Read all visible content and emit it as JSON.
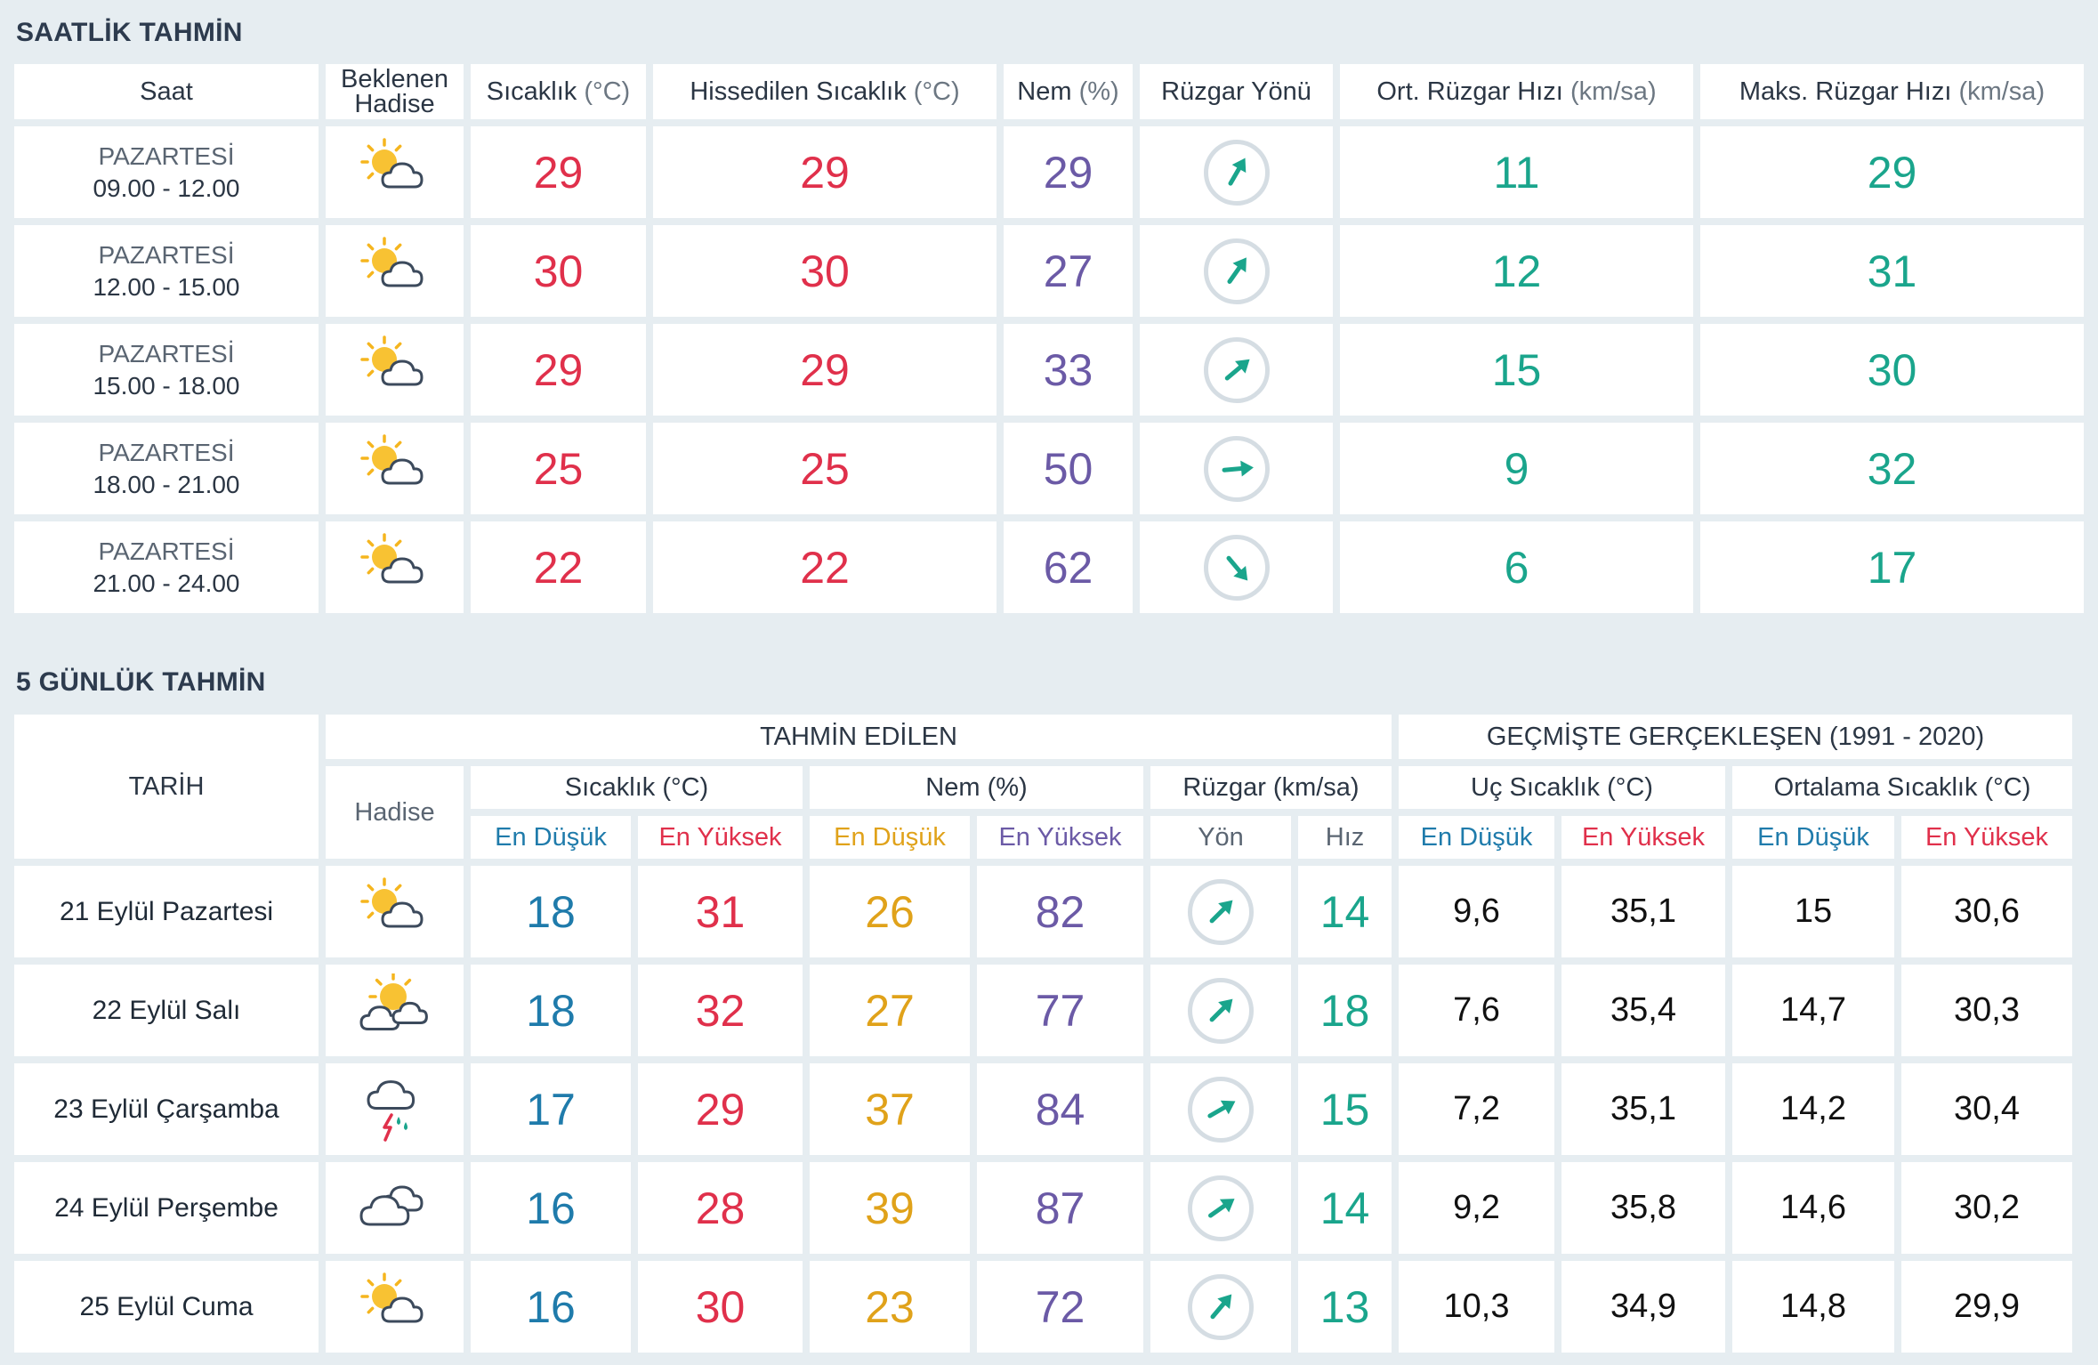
{
  "hourly": {
    "title": "SAATLİK TAHMİN",
    "headers": {
      "time": "Saat",
      "event": "Beklenen Hadise",
      "temp": "Sıcaklık",
      "temp_unit": "(°C)",
      "feels": "Hissedilen Sıcaklık",
      "feels_unit": "(°C)",
      "humidity": "Nem",
      "humidity_unit": "(%)",
      "wind_dir": "Rüzgar Yönü",
      "wind_avg": "Ort. Rüzgar Hızı",
      "wind_avg_unit": "(km/sa)",
      "wind_max": "Maks. Rüzgar Hızı",
      "wind_max_unit": "(km/sa)"
    },
    "rows": [
      {
        "day": "PAZARTESİ",
        "range": "09.00 - 12.00",
        "icon": "partly-cloudy-icon",
        "temp": "29",
        "feels": "29",
        "humidity": "29",
        "wind_dir_deg": 30,
        "wind_avg": "11",
        "wind_max": "29"
      },
      {
        "day": "PAZARTESİ",
        "range": "12.00 - 15.00",
        "icon": "partly-cloudy-icon",
        "temp": "30",
        "feels": "30",
        "humidity": "27",
        "wind_dir_deg": 35,
        "wind_avg": "12",
        "wind_max": "31"
      },
      {
        "day": "PAZARTESİ",
        "range": "15.00 - 18.00",
        "icon": "partly-cloudy-icon",
        "temp": "29",
        "feels": "29",
        "humidity": "33",
        "wind_dir_deg": 50,
        "wind_avg": "15",
        "wind_max": "30"
      },
      {
        "day": "PAZARTESİ",
        "range": "18.00 - 21.00",
        "icon": "partly-cloudy-icon",
        "temp": "25",
        "feels": "25",
        "humidity": "50",
        "wind_dir_deg": 85,
        "wind_avg": "9",
        "wind_max": "32"
      },
      {
        "day": "PAZARTESİ",
        "range": "21.00 - 24.00",
        "icon": "partly-cloudy-icon",
        "temp": "22",
        "feels": "22",
        "humidity": "62",
        "wind_dir_deg": 140,
        "wind_avg": "6",
        "wind_max": "17"
      }
    ]
  },
  "daily": {
    "title": "5 GÜNLÜK TAHMİN",
    "headers": {
      "date": "TARİH",
      "forecast_group": "TAHMİN EDİLEN",
      "history_group": "GEÇMİŞTE GERÇEKLEŞEN (1991 - 2020)",
      "event": "Hadise",
      "temp": "Sıcaklık (°C)",
      "humidity": "Nem (%)",
      "wind": "Rüzgar (km/sa)",
      "extreme_temp": "Uç Sıcaklık (°C)",
      "avg_temp": "Ortalama Sıcaklık (°C)",
      "min": "En Düşük",
      "max": "En Yüksek",
      "dir": "Yön",
      "speed": "Hız"
    },
    "rows": [
      {
        "date": "21 Eylül Pazartesi",
        "icon": "partly-cloudy-icon",
        "temp_min": "18",
        "temp_max": "31",
        "hum_min": "26",
        "hum_max": "82",
        "wind_dir_deg": 45,
        "wind_speed": "14",
        "ext_min": "9,6",
        "ext_max": "35,1",
        "avg_min": "15",
        "avg_max": "30,6"
      },
      {
        "date": "22 Eylül Salı",
        "icon": "sun-clouds-icon",
        "temp_min": "18",
        "temp_max": "32",
        "hum_min": "27",
        "hum_max": "77",
        "wind_dir_deg": 45,
        "wind_speed": "18",
        "ext_min": "7,6",
        "ext_max": "35,4",
        "avg_min": "14,7",
        "avg_max": "30,3"
      },
      {
        "date": "23 Eylül Çarşamba",
        "icon": "thunderstorm-icon",
        "temp_min": "17",
        "temp_max": "29",
        "hum_min": "37",
        "hum_max": "84",
        "wind_dir_deg": 60,
        "wind_speed": "15",
        "ext_min": "7,2",
        "ext_max": "35,1",
        "avg_min": "14,2",
        "avg_max": "30,4"
      },
      {
        "date": "24 Eylül Perşembe",
        "icon": "cloudy-icon",
        "temp_min": "16",
        "temp_max": "28",
        "hum_min": "39",
        "hum_max": "87",
        "wind_dir_deg": 55,
        "wind_speed": "14",
        "ext_min": "9,2",
        "ext_max": "35,8",
        "avg_min": "14,6",
        "avg_max": "30,2"
      },
      {
        "date": "25 Eylül Cuma",
        "icon": "partly-cloudy-icon",
        "temp_min": "16",
        "temp_max": "30",
        "hum_min": "23",
        "hum_max": "72",
        "wind_dir_deg": 40,
        "wind_speed": "13",
        "ext_min": "10,3",
        "ext_max": "34,9",
        "avg_min": "14,8",
        "avg_max": "29,9"
      }
    ]
  }
}
